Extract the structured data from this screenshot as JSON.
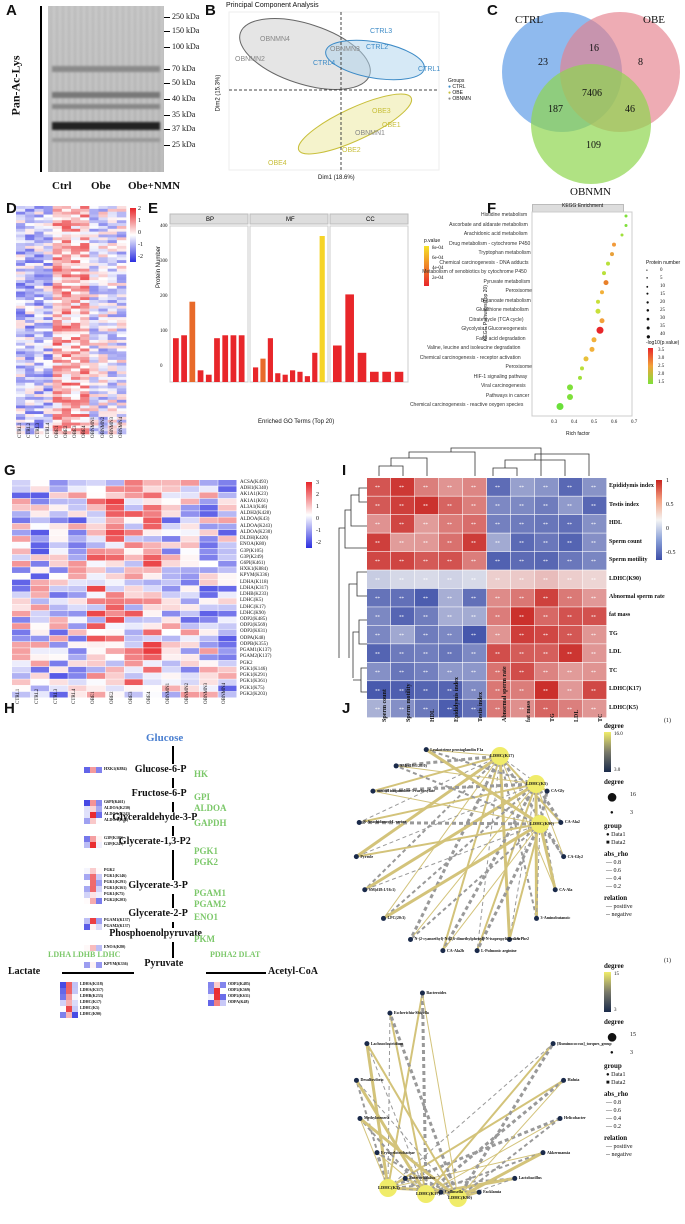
{
  "panels": {
    "A": "A",
    "B": "B",
    "C": "C",
    "D": "D",
    "E": "E",
    "F": "F",
    "G": "G",
    "H": "H",
    "I": "I",
    "J": "J"
  },
  "panelA": {
    "ylabel": "Pan-Ac-Lys",
    "markers": [
      "250 kDa",
      "150 kDa",
      "100 kDa",
      "70 kDa",
      "50 kDa",
      "40 kDa",
      "35 kDa",
      "37 kDa",
      "25 kDa"
    ],
    "lanes": [
      "Ctrl",
      "Obe",
      "Obe+NMN"
    ]
  },
  "panelB": {
    "title": "Principal Component Analysis",
    "xlabel": "Dim1 (18.6%)",
    "ylabel": "Dim2 (15.3%)",
    "legend_title": "Groups",
    "legend": [
      "CTRL",
      "OBE",
      "OBNMN"
    ],
    "points": {
      "ctrl": [
        "CTRL3",
        "CTRL2",
        "CTRL4",
        "CTRL1"
      ],
      "obnmn": [
        "OBNMN4",
        "OBNMN2",
        "OBNMN3",
        "OBNMN1"
      ],
      "obe": [
        "OBE3",
        "OBE1",
        "OBE2",
        "OBE4"
      ]
    }
  },
  "panelC": {
    "sets": [
      "CTRL",
      "OBE",
      "OBNMN"
    ],
    "counts": {
      "ctrl_only": "23",
      "ctrl_obe": "16",
      "obe_only": "8",
      "all": "7406",
      "ctrl_obnmn": "187",
      "obe_obnmn": "46",
      "obnmn_only": "109"
    }
  },
  "panelD": {
    "legend_ticks": [
      "2",
      "1",
      "0",
      "-1",
      "-2"
    ],
    "columns": [
      "CTRL1",
      "CTRL2",
      "CTRL3",
      "CTRL4",
      "OBE1",
      "OBE2",
      "OBE3",
      "OBE4",
      "OBNMN1",
      "OBNMN2",
      "OBNMN3",
      "OBNMN4"
    ]
  },
  "panelE": {
    "facets": [
      "BP",
      "MF",
      "CC"
    ],
    "xlabel": "Enriched GO Terms (Top 20)",
    "ylabel": "Protein Number",
    "legend_title": "p.value",
    "legend_ticks": [
      "8e-04",
      "6e-04",
      "4e-04",
      "2e-04"
    ],
    "yticks": [
      "400",
      "300",
      "200",
      "100",
      "0"
    ]
  },
  "panelF": {
    "title": "KEGG Enrichment",
    "xlabel": "Rich factor",
    "ylabel": "KEGG Pathways(Top 20)",
    "xticks": [
      "0.3",
      "0.4",
      "0.5",
      "0.6",
      "0.7"
    ],
    "pathways": [
      "Histidine metabolism",
      "Ascorbate and aldarate metabolism",
      "Arachidonic acid metabolism",
      "Drug metabolism - cytochrome P450",
      "Tryptophan metabolism",
      "Chemical carcinogenesis - DNA adducts",
      "Metabolism of xenobiotics by cytochrome P450",
      "Pyruvate metabolism",
      "Peroxisome",
      "Butanoate metabolism",
      "Glutathione metabolism",
      "Citrate cycle (TCA cycle)",
      "Glycolysis / Gluconeogenesis",
      "Fatty acid degradation",
      "Valine, leucine and isoleucine degradation",
      "Chemical carcinogenesis - receptor activation",
      "Peroxisome",
      "HIF-1 signaling pathway",
      "Viral carcinogenesis",
      "Pathways in cancer",
      "Chemical carcinogenesis - reactive oxygen species"
    ],
    "size_legend_title": "Protein number",
    "size_legend": [
      "0",
      "5",
      "10",
      "15",
      "20",
      "25",
      "30",
      "35",
      "40"
    ],
    "color_legend_title": "-log10(p.value)",
    "color_legend": [
      "3.5",
      "3.0",
      "2.5",
      "2.0",
      "1.5"
    ]
  },
  "panelG": {
    "rows": [
      "ACSA(K493)",
      "ADH1(K340)",
      "AK1A1(K23)",
      "AK1A1(K61)",
      "AL3A1(K46)",
      "ALDH2(K428)",
      "ALDOA(K43)",
      "ALDOA(K243)",
      "ALDOA(K230)",
      "DLDH(K420)",
      "ENOA(K80)",
      "G3P(K105)",
      "G3P(K249)",
      "G6PI(K461)",
      "HXK1(K884)",
      "KPYM(K336)",
      "LDHA(K118)",
      "LDHA(K317)",
      "LDHB(K233)",
      "LDHC(K5)",
      "LDHC(K17)",
      "LDHC(K90)",
      "ODP2(K485)",
      "ODP2(K569)",
      "ODP2(K631)",
      "ODPA(K48)",
      "ODPB(K355)",
      "PGAM1(K137)",
      "PGAM2(K137)",
      "PGK2",
      "PGK1(K146)",
      "PGK1(K291)",
      "PGK1(K361)",
      "PGK1(K75)",
      "PGK2(K203)"
    ],
    "columns": [
      "CTRL1",
      "CTRL2",
      "CTRL3",
      "CTRL4",
      "OBE1",
      "OBE2",
      "OBE3",
      "OBE4",
      "OBNMN1",
      "OBNMN2",
      "OBNMN3",
      "OBNMN4"
    ],
    "legend_ticks": [
      "3",
      "2",
      "1",
      "0",
      "-1",
      "-2"
    ]
  },
  "panelH": {
    "metabolites": [
      "Glucose",
      "Glucose-6-P",
      "Fructose-6-P",
      "Glyceraldehyde-3-P",
      "Glycerate-1,3-P2",
      "Glycerate-3-P",
      "Glycerate-2-P",
      "Phosphoenolpyruvate",
      "Pyruvate",
      "Lactate",
      "Acetyl-CoA"
    ],
    "enzymes": [
      "HK",
      "GPI\nALDOA",
      "GAPDH",
      "PGK1\nPGK2",
      "PGAM1\nPGAM2",
      "ENO1",
      "PKM",
      "LDHA LDHB LDHC",
      "PDHA2 DLAT"
    ],
    "small_labels": {
      "hk": [
        "HXK1(K884)"
      ],
      "gpi": [
        "G6PI(K461)",
        "ALDOA(K230)",
        "ALDOA(K243)",
        "ALDOA(K43)"
      ],
      "gapdh": [
        "G3P(K105)",
        "G3P(K249)"
      ],
      "pgk": [
        "PGK2",
        "PGK1(K146)",
        "PGK1(K291)",
        "PGK1(K361)",
        "PGK1(K75)",
        "PGK2(K203)"
      ],
      "pgam": [
        "PGAM1(K137)",
        "PGAM2(K137)"
      ],
      "eno": [
        "ENOA(K80)"
      ],
      "pkm": [
        "KPYM(K336)"
      ],
      "ldh": [
        "LDHA(K118)",
        "LDHA(K317)",
        "LDHB(K233)",
        "LDHC(K17)",
        "LDHC(K5)",
        "LDHC(K90)"
      ],
      "pdh": [
        "ODP2(K485)",
        "ODP2(K569)",
        "ODP2(K631)",
        "ODPA(K48)"
      ]
    }
  },
  "panelI": {
    "rows": [
      "Epididymis index",
      "Testis index",
      "HDL",
      "Sperm count",
      "Sperm motility",
      "LDHC(K90)",
      "Abnormal sperm rate",
      "fat mass",
      "TG",
      "LDL",
      "TC",
      "LDHC(K17)",
      "LDHC(K5)"
    ],
    "columns": [
      "Sperm count",
      "Sperm motility",
      "HDL",
      "Epididymis index",
      "Testis index",
      "Abnormal sperm rate",
      "fat mass",
      "TG",
      "LDL",
      "TC"
    ],
    "legend_ticks": [
      "1",
      "0.5",
      "0",
      "-0.5"
    ]
  },
  "panelJ": {
    "top_nodes": [
      "LDHC(K17)",
      "LDHC(K5)",
      "LDHC(K90)",
      "CA-Gly",
      "CA-Ala2",
      "CA-Gly2",
      "CA-Ala",
      "3-Aminobutanoic",
      "CA-Phe2",
      "L-Pulmonic arginine",
      "CA-Ala2b",
      "N-(2-cyanoethyl)-N-(2,6-dimethylphenyl)-N-isopropylthiourea",
      "LPC(20:3)",
      "SM(d18:1/16:1)",
      "Pyrrole",
      "N-Arachidonoyl-L-serine",
      "methyl isoquinoline-3-carboxylate",
      "SM(d18:1/20:0)",
      "Leukotriene prostaglandin F1a"
    ],
    "bottom_nodes": [
      "LDHC(K5)",
      "LDHC(K17)",
      "LDHC(K90)",
      "[Ruminococcus]_torques_group",
      "Hafnia",
      "Helicobacter",
      "Akkermansia",
      "Lactobacillus",
      "Facklamia",
      "Collinsella",
      "Enterorhabdus",
      "Erysipelotrichaceae",
      "Methylotenera",
      "Desulfovibrio",
      "Lachnoclostridium",
      "Escherichia-Shigella",
      "Bacteroides"
    ],
    "legend": {
      "degree": "degree",
      "top_scale": [
        "16.0",
        "13.5",
        "11.0",
        "8.5",
        "6.0",
        "3.0"
      ],
      "bottom_scale": [
        "15",
        "12",
        "9",
        "6",
        "3"
      ],
      "size_ticks_top": [
        "16",
        "3"
      ],
      "size_ticks_bottom": [
        "15",
        "3"
      ],
      "group": "group",
      "groups": [
        "Data1",
        "Data2"
      ],
      "abs_rho": "abs_rho",
      "rho": [
        "0.8",
        "0.6",
        "0.4",
        "0.2"
      ],
      "relation": "relation",
      "relations": [
        "positive",
        "negative"
      ],
      "marker": "(1)"
    }
  }
}
